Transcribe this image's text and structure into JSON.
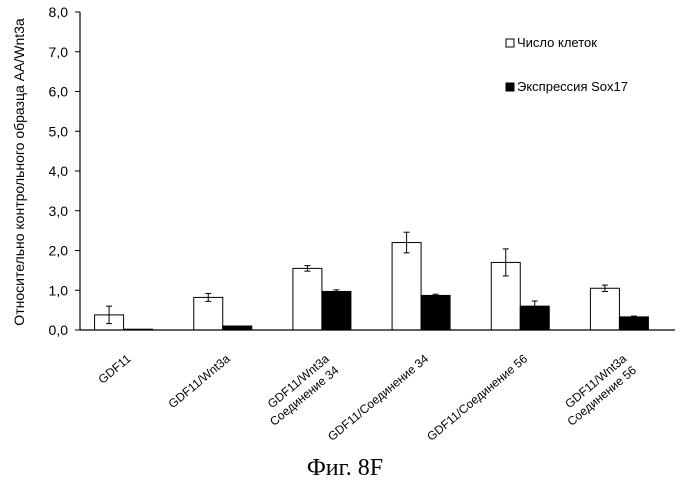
{
  "chart_data": {
    "type": "bar",
    "title": "",
    "xlabel": "",
    "ylabel": "Относительно контрольного образца АА/Wnt3a",
    "ylim": [
      0,
      8
    ],
    "yticks": [
      0,
      1,
      2,
      3,
      4,
      5,
      6,
      7,
      8
    ],
    "ytick_labels": [
      "0,0",
      "1,0",
      "2,0",
      "3,0",
      "4,0",
      "5,0",
      "6,0",
      "7,0",
      "8,0"
    ],
    "grid": false,
    "legend_position": "top-right",
    "categories": [
      [
        "GDF11"
      ],
      [
        "GDF11/Wnt3a"
      ],
      [
        "GDF11/Wnt3a",
        "Соединение 34"
      ],
      [
        "GDF11/Соединение 34"
      ],
      [
        "GDF11/Соединение 56"
      ],
      [
        "GDF11/Wnt3a",
        "Соединение 56"
      ]
    ],
    "series": [
      {
        "name": "Число клеток",
        "color": "#ffffff",
        "values": [
          0.38,
          0.82,
          1.55,
          2.2,
          1.7,
          1.05
        ],
        "errors": [
          0.22,
          0.1,
          0.07,
          0.26,
          0.34,
          0.08
        ]
      },
      {
        "name": "Экспрессия Sox17",
        "color": "#000000",
        "values": [
          0.02,
          0.1,
          0.97,
          0.87,
          0.6,
          0.33
        ],
        "errors": [
          0,
          0,
          0.04,
          0.03,
          0.13,
          0.02
        ]
      }
    ],
    "caption": "Фиг. 8F"
  }
}
